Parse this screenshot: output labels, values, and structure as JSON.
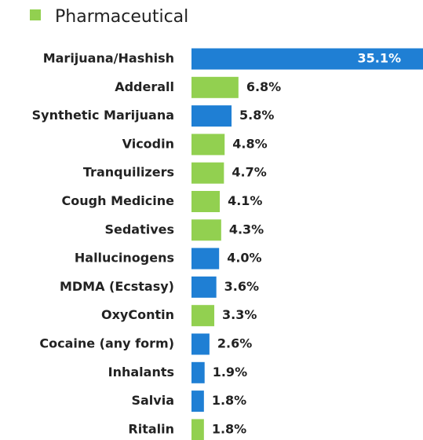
{
  "chart_data": {
    "type": "bar",
    "orientation": "horizontal",
    "legend": [
      {
        "name": "Pharmaceutical",
        "color": "#92d050"
      }
    ],
    "categories": [
      "Marijuana/Hashish",
      "Adderall",
      "Synthetic Marijuana",
      "Vicodin",
      "Tranquilizers",
      "Cough Medicine",
      "Sedatives",
      "Hallucinogens",
      "MDMA (Ecstasy)",
      "OxyContin",
      "Cocaine (any form)",
      "Inhalants",
      "Salvia",
      "Ritalin"
    ],
    "values": [
      35.1,
      6.8,
      5.8,
      4.8,
      4.7,
      4.1,
      4.3,
      4.0,
      3.6,
      3.3,
      2.6,
      1.9,
      1.8,
      1.8
    ],
    "value_labels": [
      "35.1%",
      "6.8%",
      "5.8%",
      "4.8%",
      "4.7%",
      "4.1%",
      "4.3%",
      "4.0%",
      "3.6%",
      "3.3%",
      "2.6%",
      "1.9%",
      "1.8%",
      "1.8%"
    ],
    "colors": [
      "#1f7fd4",
      "#92d050",
      "#1f7fd4",
      "#92d050",
      "#92d050",
      "#92d050",
      "#92d050",
      "#1f7fd4",
      "#1f7fd4",
      "#92d050",
      "#1f7fd4",
      "#1f7fd4",
      "#1f7fd4",
      "#92d050"
    ]
  }
}
